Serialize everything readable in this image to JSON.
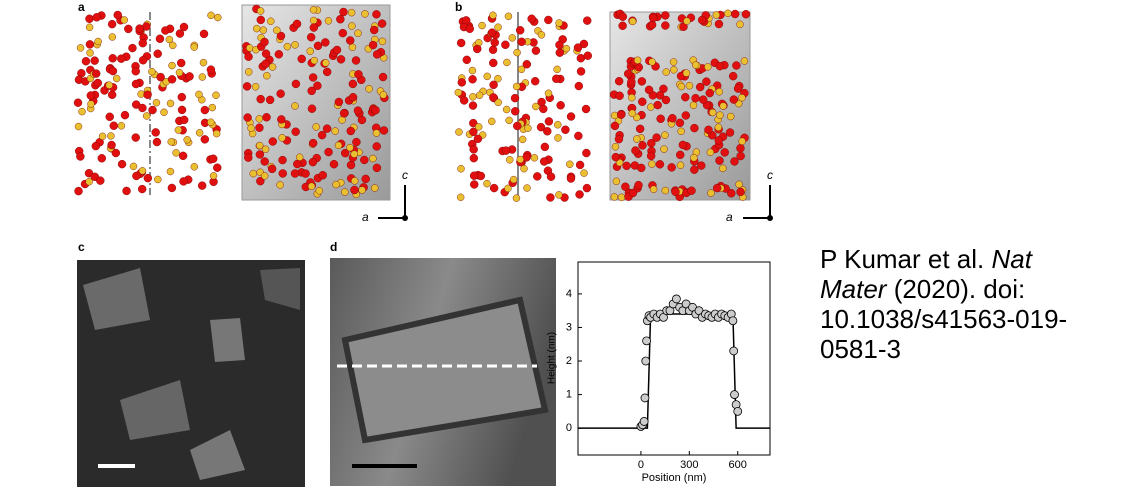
{
  "figure": {
    "panel_labels": [
      "a",
      "b",
      "c",
      "d"
    ],
    "axes_a": {
      "up": "c",
      "right": "a"
    },
    "axes_b": {
      "up": "c",
      "right": "a"
    }
  },
  "chart_data": {
    "type": "line",
    "xlabel": "Position (nm)",
    "ylabel": "Height (nm)",
    "xlim": [
      -390,
      800
    ],
    "ylim": [
      -0.8,
      4.95
    ],
    "xticks": [
      0,
      300,
      600
    ],
    "yticks": [
      0,
      1,
      2,
      3,
      4
    ],
    "points": {
      "color": "#cccccc",
      "x": [
        0,
        10,
        20,
        25,
        30,
        35,
        40,
        50,
        60,
        80,
        100,
        120,
        140,
        160,
        180,
        200,
        220,
        240,
        260,
        280,
        300,
        320,
        340,
        360,
        380,
        400,
        420,
        440,
        460,
        480,
        500,
        520,
        540,
        560,
        570,
        575,
        580,
        590,
        600
      ],
      "values": [
        0.05,
        0.1,
        0.2,
        0.9,
        2.0,
        2.6,
        3.2,
        3.35,
        3.3,
        3.4,
        3.3,
        3.4,
        3.3,
        3.5,
        3.5,
        3.7,
        3.85,
        3.6,
        3.5,
        3.7,
        3.5,
        3.6,
        3.4,
        3.5,
        3.3,
        3.4,
        3.35,
        3.3,
        3.4,
        3.3,
        3.4,
        3.35,
        3.3,
        3.4,
        3.2,
        2.3,
        1.0,
        0.7,
        0.5
      ]
    },
    "fit": {
      "color": "#000000",
      "x": [
        -390,
        40,
        60,
        570,
        590,
        800
      ],
      "values": [
        0,
        0,
        3.4,
        3.4,
        0,
        0
      ]
    }
  },
  "citation": {
    "authors": "P Kumar et al. ",
    "journal": "Nat Mater",
    "rest": " (2020). doi: 10.1038/s41563-019-0581-3"
  }
}
